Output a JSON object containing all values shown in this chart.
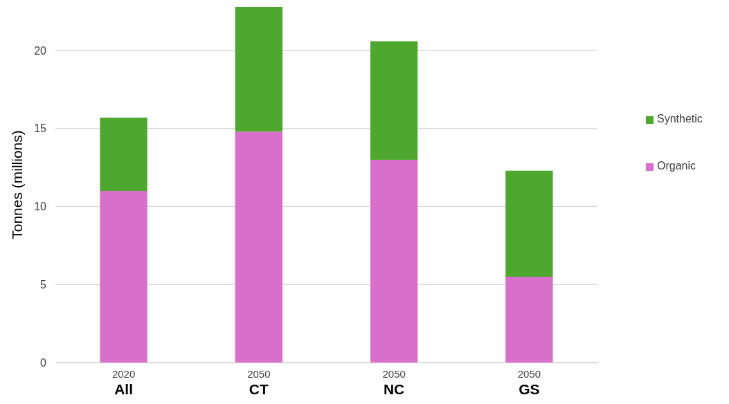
{
  "chart_data": {
    "type": "bar",
    "stacked": true,
    "ylabel": "Tonnes (millions)",
    "categories": [
      "2020\nAll",
      "2050\nCT",
      "2050\nNC",
      "2050\nGS"
    ],
    "series": [
      {
        "name": "Organic",
        "color": "#d76fcb",
        "values": [
          11.0,
          14.8,
          13.0,
          5.5
        ]
      },
      {
        "name": "Synthetic",
        "color": "#4ea72e",
        "values": [
          4.7,
          8.0,
          7.6,
          6.8
        ]
      }
    ],
    "ylim": [
      0,
      22.8
    ],
    "yticks": [
      0,
      5,
      10,
      15,
      20
    ],
    "grid": "y",
    "legend": "right"
  }
}
